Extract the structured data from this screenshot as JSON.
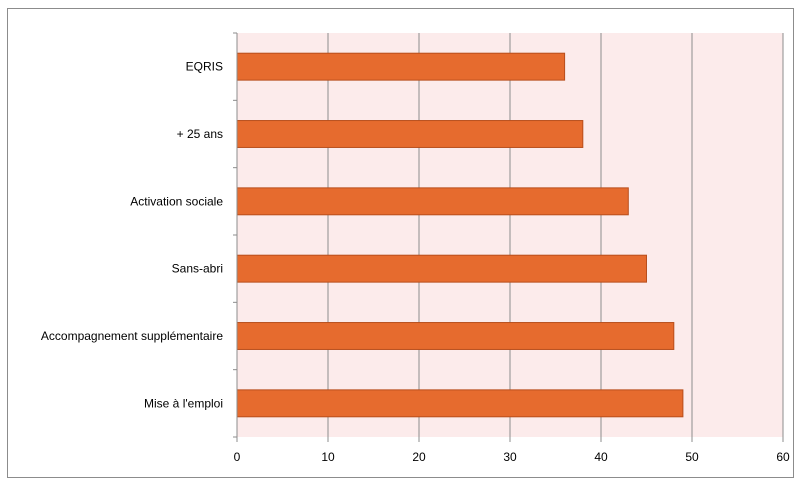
{
  "chart_data": {
    "type": "bar",
    "orientation": "horizontal",
    "title": "",
    "xlabel": "",
    "ylabel": "",
    "categories": [
      "EQRIS",
      "+ 25 ans",
      "Activation sociale",
      "Sans-abri",
      "Accompagnement supplémentaire",
      "Mise à l'emploi"
    ],
    "values": [
      36,
      38,
      43,
      45,
      48,
      49
    ],
    "xlim": [
      0,
      60
    ],
    "x_ticks": [
      "0",
      "10",
      "20",
      "30",
      "40",
      "50",
      "60"
    ],
    "grid": "vertical",
    "legend": "none",
    "colors": {
      "bar": "#E66B2E",
      "bar_border": "#B84E1C",
      "plot_background": "#FCEBEB",
      "gridline": "#8C8C8C",
      "axis": "#8C8C8C"
    }
  }
}
